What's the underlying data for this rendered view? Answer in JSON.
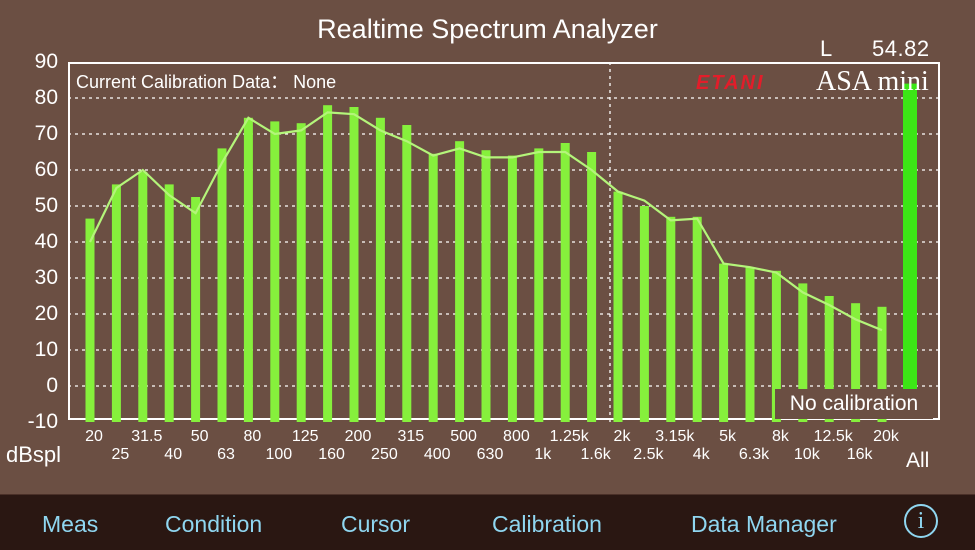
{
  "title": "Realtime Spectrum Analyzer",
  "channel": "L",
  "overall_level": "54.82",
  "calibration_label": "Current Calibration Data： None",
  "calibration_status": "No calibration",
  "brand": {
    "logo": "ETANI",
    "model": "ASA mini"
  },
  "y_unit": "dBspl",
  "all_label": "All",
  "colors": {
    "bar": "#86f03c",
    "all_bar": "#3ce616",
    "line": "#b4f57a",
    "background": "#6b4f43",
    "toolbar_text": "#8fd6f0"
  },
  "chart_data": {
    "type": "bar",
    "ylabel": "dBspl",
    "ylim": [
      -10,
      90
    ],
    "yticks": [
      "90",
      "80",
      "70",
      "60",
      "50",
      "40",
      "30",
      "20",
      "10",
      "0",
      "-10"
    ],
    "grid": true,
    "categories": [
      "20",
      "25",
      "31.5",
      "40",
      "50",
      "63",
      "80",
      "100",
      "125",
      "160",
      "200",
      "250",
      "315",
      "400",
      "500",
      "630",
      "800",
      "1k",
      "1.25k",
      "1.6k",
      "2k",
      "2.5k",
      "3.15k",
      "4k",
      "5k",
      "6.3k",
      "8k",
      "10k",
      "12.5k",
      "16k",
      "20k"
    ],
    "x_labels_top": [
      "20",
      "31.5",
      "50",
      "80",
      "125",
      "200",
      "315",
      "500",
      "800",
      "1.25k",
      "2k",
      "3.15k",
      "5k",
      "8k",
      "12.5k",
      "20k"
    ],
    "x_labels_bottom": [
      "25",
      "40",
      "63",
      "100",
      "160",
      "250",
      "400",
      "630",
      "1k",
      "1.6k",
      "2.5k",
      "4k",
      "6.3k",
      "10k",
      "16k"
    ],
    "series": [
      {
        "values": [
          46.5,
          56,
          59.5,
          56,
          52.5,
          66,
          74.5,
          73.5,
          73,
          78,
          77.5,
          74.5,
          72.5,
          64.5,
          68,
          65.5,
          64,
          66,
          67.5,
          65,
          54,
          50,
          47,
          47,
          34,
          33,
          32,
          28.5,
          25,
          23,
          22
        ]
      },
      {
        "values": [
          40,
          55,
          60,
          53,
          48,
          62,
          74.5,
          70,
          71,
          76,
          75.5,
          71,
          68,
          64,
          66,
          63.5,
          63.5,
          65,
          65,
          60,
          54,
          51.5,
          46,
          46.5,
          34,
          33,
          31.5,
          26,
          22.5,
          18.5,
          15.5
        ]
      }
    ],
    "overall": 84,
    "marker_frequency": "2k"
  },
  "toolbar": {
    "items": [
      "Meas",
      "Condition",
      "Cursor",
      "Calibration",
      "Data Manager"
    ],
    "info_icon": "i"
  }
}
